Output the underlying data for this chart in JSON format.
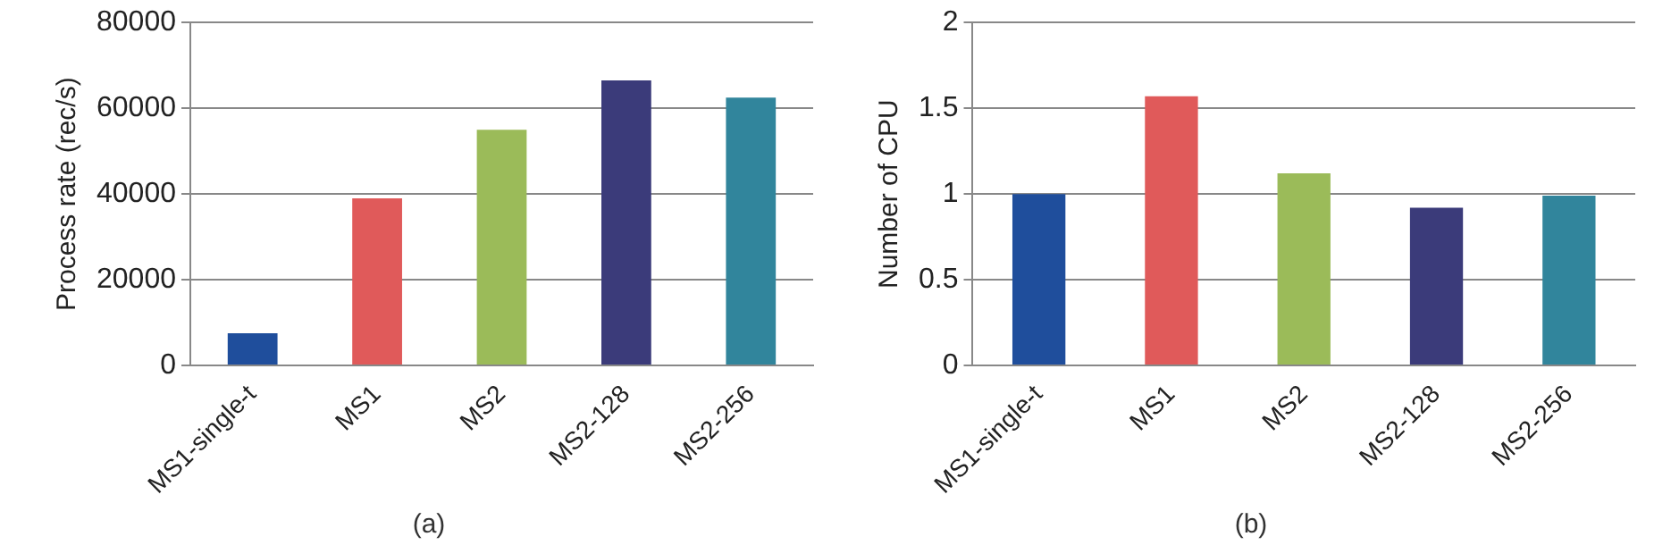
{
  "chart_data": [
    {
      "type": "bar",
      "title": "(a)",
      "ylabel": "Process rate (rec/s)",
      "categories": [
        "MS1-single-t",
        "MS1",
        "MS2",
        "MS2-128",
        "MS2-256"
      ],
      "values": [
        7500,
        39000,
        55000,
        66500,
        62500
      ],
      "colors": [
        "#1f4e9c",
        "#e05a5a",
        "#9bbb59",
        "#3b3b7a",
        "#31859c"
      ],
      "ylim": [
        0,
        80000
      ],
      "yticks": [
        0,
        20000,
        40000,
        60000,
        80000
      ],
      "grid": "y",
      "legend": false
    },
    {
      "type": "bar",
      "title": "(b)",
      "ylabel": "Number of CPU",
      "categories": [
        "MS1-single-t",
        "MS1",
        "MS2",
        "MS2-128",
        "MS2-256"
      ],
      "values": [
        1.0,
        1.57,
        1.12,
        0.92,
        0.99
      ],
      "colors": [
        "#1f4e9c",
        "#e05a5a",
        "#9bbb59",
        "#3b3b7a",
        "#31859c"
      ],
      "ylim": [
        0,
        2
      ],
      "yticks": [
        0,
        0.5,
        1,
        1.5,
        2
      ],
      "grid": "y",
      "legend": false
    }
  ]
}
